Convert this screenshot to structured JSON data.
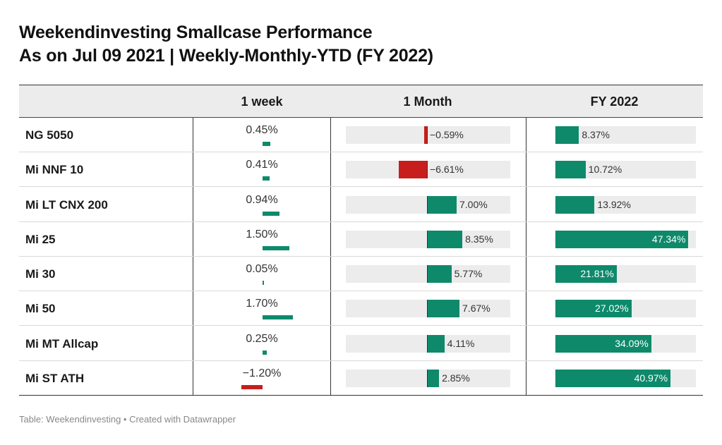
{
  "title": {
    "line1": "Weekendinvesting Smallcase Performance",
    "line2": "As on Jul 09 2021 | Weekly-Monthly-YTD (FY 2022)"
  },
  "headers": [
    "",
    "1 week",
    "1 Month",
    "FY 2022"
  ],
  "footer": "Table: Weekendinvesting • Created with Datawrapper",
  "colors": {
    "positive": "#0e8a6b",
    "negative": "#c71e1d",
    "track": "#ececec"
  },
  "chart_data": {
    "type": "table",
    "rows": [
      {
        "name": "NG 5050",
        "week": 0.45,
        "week_label": "0.45%",
        "month": -0.59,
        "month_label": "−0.59%",
        "fy": 8.37,
        "fy_label": "8.37%"
      },
      {
        "name": "Mi NNF 10",
        "week": 0.41,
        "week_label": "0.41%",
        "month": -6.61,
        "month_label": "−6.61%",
        "fy": 10.72,
        "fy_label": "10.72%"
      },
      {
        "name": "Mi LT CNX 200",
        "week": 0.94,
        "week_label": "0.94%",
        "month": 7.0,
        "month_label": "7.00%",
        "fy": 13.92,
        "fy_label": "13.92%"
      },
      {
        "name": "Mi 25",
        "week": 1.5,
        "week_label": "1.50%",
        "month": 8.35,
        "month_label": "8.35%",
        "fy": 47.34,
        "fy_label": "47.34%"
      },
      {
        "name": "Mi 30",
        "week": 0.05,
        "week_label": "0.05%",
        "month": 5.77,
        "month_label": "5.77%",
        "fy": 21.81,
        "fy_label": "21.81%"
      },
      {
        "name": "Mi 50",
        "week": 1.7,
        "week_label": "1.70%",
        "month": 7.67,
        "month_label": "7.67%",
        "fy": 27.02,
        "fy_label": "27.02%"
      },
      {
        "name": "Mi MT Allcap",
        "week": 0.25,
        "week_label": "0.25%",
        "month": 4.11,
        "month_label": "4.11%",
        "fy": 34.09,
        "fy_label": "34.09%"
      },
      {
        "name": "Mi ST ATH",
        "week": -1.2,
        "week_label": "−1.20%",
        "month": 2.85,
        "month_label": "2.85%",
        "fy": 40.97,
        "fy_label": "40.97%"
      }
    ],
    "week_range": [
      -1.2,
      1.7
    ],
    "month_range": [
      -6.61,
      8.35
    ],
    "fy_range": [
      0,
      47.34
    ]
  }
}
